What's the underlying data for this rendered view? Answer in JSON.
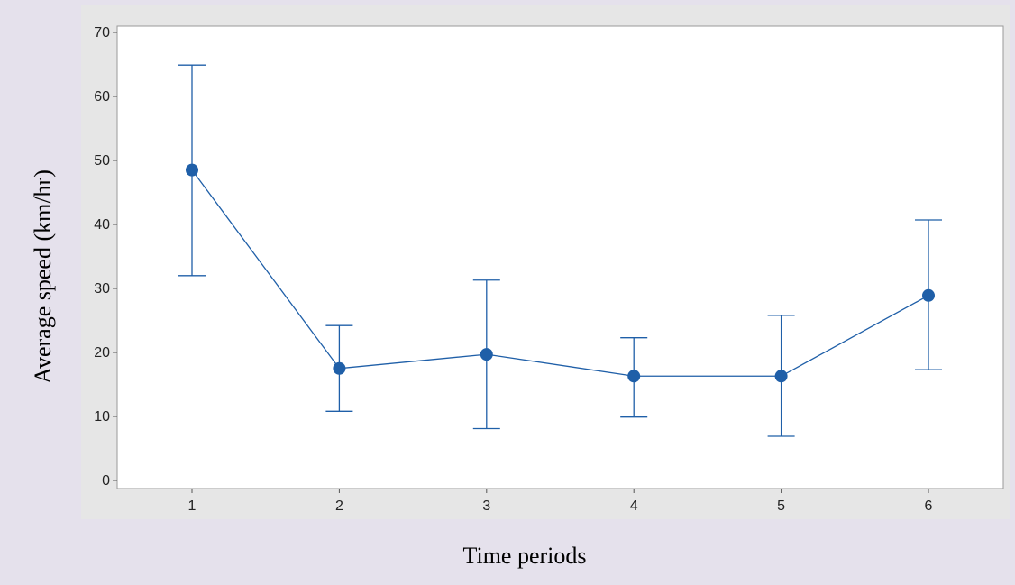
{
  "chart_data": {
    "type": "line",
    "title": "",
    "xlabel": "Time periods",
    "ylabel": "Average speed (km/hr)",
    "x": [
      "1",
      "2",
      "3",
      "4",
      "5",
      "6"
    ],
    "series": [
      {
        "name": "",
        "values": [
          48.5,
          17.5,
          19.7,
          16.3,
          16.3,
          28.9
        ],
        "error_low": [
          32.0,
          10.8,
          8.1,
          9.9,
          6.9,
          17.3
        ],
        "error_high": [
          64.9,
          24.2,
          31.3,
          22.3,
          25.8,
          40.7
        ]
      }
    ],
    "yticks": [
      0,
      10,
      20,
      30,
      40,
      50,
      60,
      70
    ],
    "ylim": [
      0,
      70
    ],
    "grid": false,
    "colors": {
      "series": "#1f5fa8",
      "plot_bg": "#ffffff",
      "outer_bg": "#e6e6e6",
      "page_bg": "#e5e1ec"
    }
  }
}
